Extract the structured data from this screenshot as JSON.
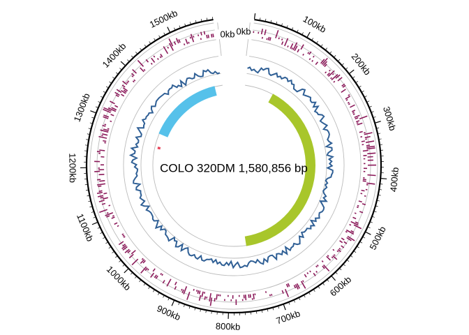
{
  "diagram": {
    "title": "COLO 320DM 1,580,856 bp",
    "genome_length_kb": 1581,
    "tick_labels": [
      {
        "kb": 0,
        "label": "0kb"
      },
      {
        "kb": 100,
        "label": "100kb"
      },
      {
        "kb": 200,
        "label": "200kb"
      },
      {
        "kb": 300,
        "label": "300kb"
      },
      {
        "kb": 400,
        "label": "400kb"
      },
      {
        "kb": 500,
        "label": "500kb"
      },
      {
        "kb": 600,
        "label": "600kb"
      },
      {
        "kb": 700,
        "label": "700kb"
      },
      {
        "kb": 800,
        "label": "800kb"
      },
      {
        "kb": 900,
        "label": "900kb"
      },
      {
        "kb": 1000,
        "label": "1000kb"
      },
      {
        "kb": 1100,
        "label": "1100kb"
      },
      {
        "kb": 1200,
        "label": "1200kb"
      },
      {
        "kb": 1300,
        "label": "1300kb"
      },
      {
        "kb": 1400,
        "label": "1400kb"
      },
      {
        "kb": 1500,
        "label": "1500kb"
      }
    ],
    "split_labels": [
      {
        "label": "0kb"
      },
      {
        "label": "0kb"
      }
    ],
    "segments": [
      {
        "name": "segment-green",
        "start_kb": 95,
        "end_kb": 750,
        "color": "#a8c62b"
      },
      {
        "name": "segment-blue",
        "start_kb": 1310,
        "end_kb": 1555,
        "color": "#56c1ea"
      },
      {
        "name": "segment-red",
        "start_kb": 1260,
        "end_kb": 1268,
        "color": "#e8445a"
      }
    ],
    "colors": {
      "ideogram": "#000000",
      "bars": "#8b1a5a",
      "line_track": "#2f5f95",
      "guide_rings": "#bbbbbb",
      "segment_green": "#a8c62b",
      "segment_blue": "#56c1ea",
      "segment_red": "#e8445a"
    }
  }
}
